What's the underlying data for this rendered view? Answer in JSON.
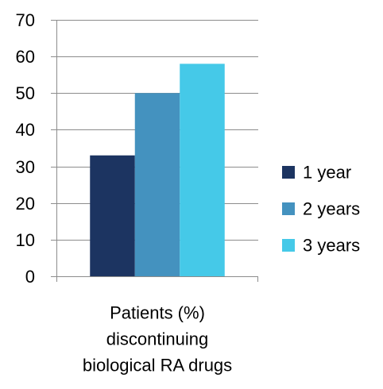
{
  "chart_data": {
    "type": "bar",
    "categories": [
      "Patients (%) discontinuing biological RA drugs"
    ],
    "category_label_lines": [
      "Patients (%)",
      "discontinuing",
      "biological RA drugs"
    ],
    "series": [
      {
        "name": "1 year",
        "values": [
          33
        ],
        "color": "#1c3461"
      },
      {
        "name": "2 years",
        "values": [
          50
        ],
        "color": "#4492bf"
      },
      {
        "name": "3 years",
        "values": [
          58
        ],
        "color": "#45c9e8"
      }
    ],
    "title": "",
    "xlabel": "",
    "ylabel": "",
    "ylim": [
      0,
      70
    ],
    "yticks": [
      0,
      10,
      20,
      30,
      40,
      50,
      60,
      70
    ],
    "grid": true,
    "legend": "right"
  }
}
